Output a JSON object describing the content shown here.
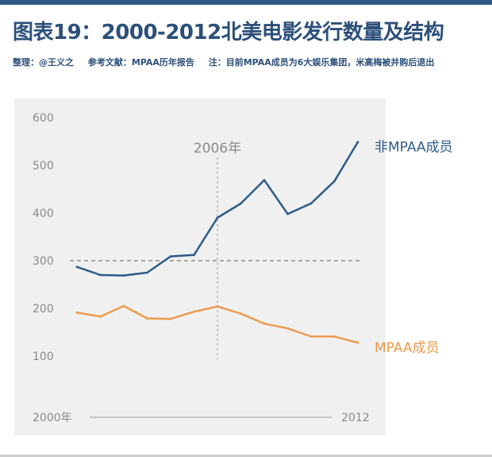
{
  "header": {
    "title": "图表19：2000-2012北美电影发行数量及结构",
    "compiler": "整理：@王义之",
    "reference": "参考文献：MPAA历年报告",
    "note": "注：目前MPAA成员为6大娱乐集团，米高梅被并购后退出"
  },
  "colors": {
    "non_mpaa": "#2e5b8a",
    "mpaa": "#ec9a4e",
    "title": "#2c4f7a",
    "panel_bg": "#f0f0f0"
  },
  "chart_data": {
    "type": "line",
    "x": [
      2000,
      2001,
      2002,
      2003,
      2004,
      2005,
      2006,
      2007,
      2008,
      2009,
      2010,
      2011,
      2012
    ],
    "x_start_label": "2000年",
    "x_end_label": "2012",
    "ylim": [
      100,
      600
    ],
    "yticks": [
      100,
      200,
      300,
      400,
      500,
      600
    ],
    "grid": false,
    "series": [
      {
        "name": "非MPAA成员",
        "key": "non_mpaa",
        "values": [
          287,
          270,
          269,
          275,
          309,
          312,
          390,
          420,
          469,
          398,
          420,
          467,
          549
        ]
      },
      {
        "name": "MPAA成员",
        "key": "mpaa",
        "values": [
          191,
          183,
          205,
          179,
          178,
          193,
          204,
          189,
          168,
          158,
          141,
          141,
          128
        ]
      }
    ],
    "reference_line": {
      "y": 300
    },
    "annotation": {
      "x": 2006,
      "label": "2006年"
    }
  }
}
